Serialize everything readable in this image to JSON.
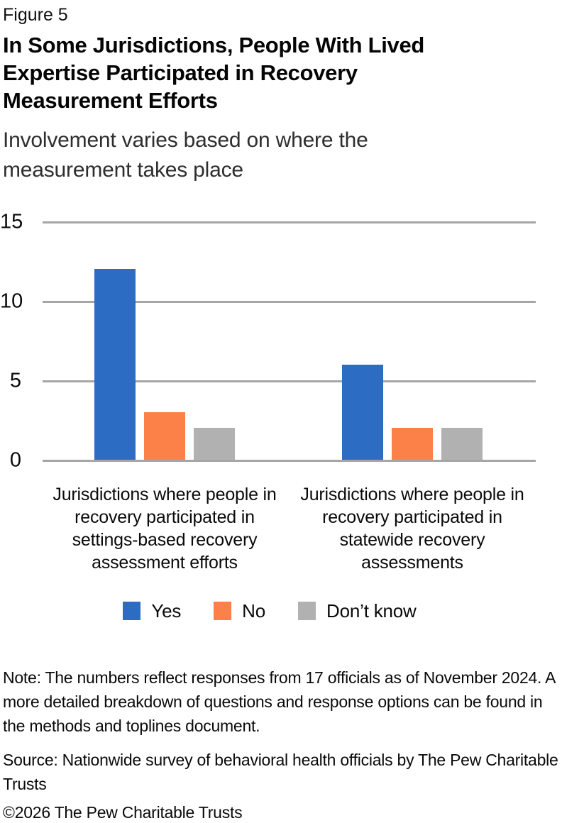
{
  "figure_label": "Figure 5",
  "title": "In Some Jurisdictions, People With Lived Expertise Participated in Recovery Measurement Efforts",
  "subtitle": "Involvement varies based on where the measurement takes place",
  "chart_data": {
    "type": "bar",
    "categories": [
      "Jurisdictions where people in recovery participated in settings-based recovery assessment efforts",
      "Jurisdictions where people in recovery participated in statewide recovery assessments"
    ],
    "series": [
      {
        "name": "Yes",
        "color": "#2d6cc3",
        "values": [
          12,
          6
        ]
      },
      {
        "name": "No",
        "color": "#fc8149",
        "values": [
          3,
          2
        ]
      },
      {
        "name": "Don’t know",
        "color": "#b1b1b1",
        "values": [
          2,
          2
        ]
      }
    ],
    "ylabel": "",
    "xlabel": "",
    "ylim": [
      0,
      15
    ],
    "yticks": [
      0,
      5,
      10,
      15
    ],
    "grid": true,
    "gridline_color": "#a6a6a6",
    "legend_position": "bottom"
  },
  "notes": {
    "note": "Note: The numbers reflect responses from 17 officials as of November 2024. A more detailed breakdown of questions and response options can be found in the methods and toplines document.",
    "source": "Source: Nationwide survey of behavioral health officials by The Pew Charitable Trusts",
    "copyright": "©2026 The Pew Charitable Trusts"
  }
}
